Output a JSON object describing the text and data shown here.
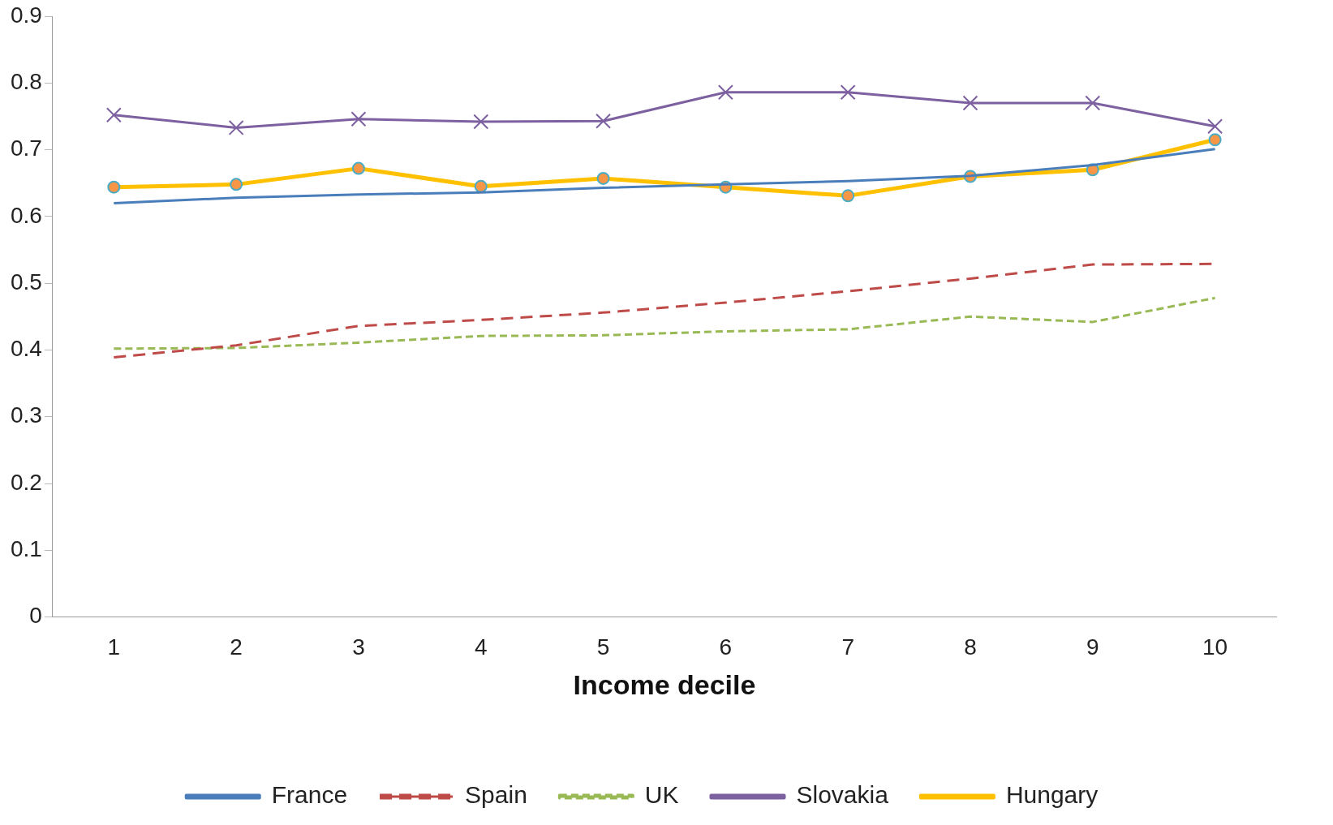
{
  "chart_data": {
    "type": "line",
    "xlabel": "Income decile",
    "categories": [
      "1",
      "2",
      "3",
      "4",
      "5",
      "6",
      "7",
      "8",
      "9",
      "10"
    ],
    "ylim": [
      0,
      0.9
    ],
    "yticks": [
      0,
      0.1,
      0.2,
      0.3,
      0.4,
      0.5,
      0.6,
      0.7,
      0.8,
      0.9
    ],
    "grid": false,
    "legend": "bottom",
    "series": [
      {
        "name": "France",
        "color": "#4a7ebb",
        "line_style": "solid",
        "marker": "none",
        "values": [
          0.62,
          0.628,
          0.633,
          0.636,
          0.643,
          0.648,
          0.653,
          0.661,
          0.677,
          0.701
        ]
      },
      {
        "name": "Spain",
        "color": "#be4b48",
        "line_style": "dashed",
        "marker": "none",
        "values": [
          0.389,
          0.407,
          0.436,
          0.445,
          0.456,
          0.471,
          0.488,
          0.507,
          0.528,
          0.529
        ]
      },
      {
        "name": "UK",
        "color": "#98b954",
        "line_style": "dotted",
        "marker": "none",
        "values": [
          0.402,
          0.403,
          0.411,
          0.421,
          0.422,
          0.428,
          0.431,
          0.45,
          0.442,
          0.478
        ]
      },
      {
        "name": "Slovakia",
        "color": "#7d60a0",
        "line_style": "solid",
        "marker": "cross",
        "values": [
          0.752,
          0.733,
          0.746,
          0.742,
          0.743,
          0.786,
          0.786,
          0.77,
          0.77,
          0.735
        ]
      },
      {
        "name": "Hungary",
        "color": "#ffc000",
        "line_style": "solid",
        "marker": "circle",
        "values": [
          0.644,
          0.648,
          0.672,
          0.645,
          0.657,
          0.644,
          0.631,
          0.66,
          0.67,
          0.715
        ]
      }
    ]
  }
}
